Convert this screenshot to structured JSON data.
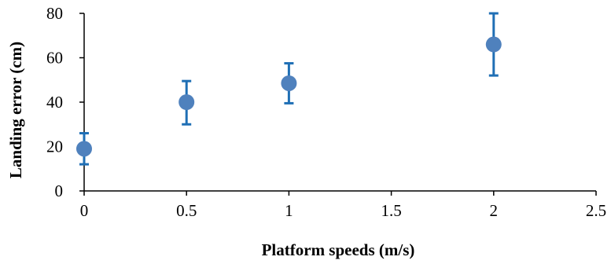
{
  "chart_data": {
    "type": "scatter",
    "xlabel": "Platform speeds (m/s)",
    "ylabel": "Landing error (cm)",
    "xlim": [
      0,
      2.5
    ],
    "ylim": [
      0,
      80
    ],
    "x_ticks": [
      0,
      0.5,
      1,
      1.5,
      2,
      2.5
    ],
    "x_tick_labels": [
      "0",
      "0.5",
      "1",
      "1.5",
      "2",
      "2.5"
    ],
    "y_ticks": [
      0,
      20,
      40,
      60,
      80
    ],
    "y_tick_labels": [
      "0",
      "20",
      "40",
      "60",
      "80"
    ],
    "grid": false,
    "legend": "none",
    "marker_color": "#4f81bd",
    "error_bar_color": "#1f6fb5",
    "series": [
      {
        "points": [
          {
            "x": 0,
            "y": 19,
            "err_low": 12,
            "err_high": 26
          },
          {
            "x": 0.5,
            "y": 40,
            "err_low": 30,
            "err_high": 49.5
          },
          {
            "x": 1,
            "y": 48.5,
            "err_low": 39.5,
            "err_high": 57.5
          },
          {
            "x": 2,
            "y": 66,
            "err_low": 52,
            "err_high": 80
          }
        ]
      }
    ]
  }
}
